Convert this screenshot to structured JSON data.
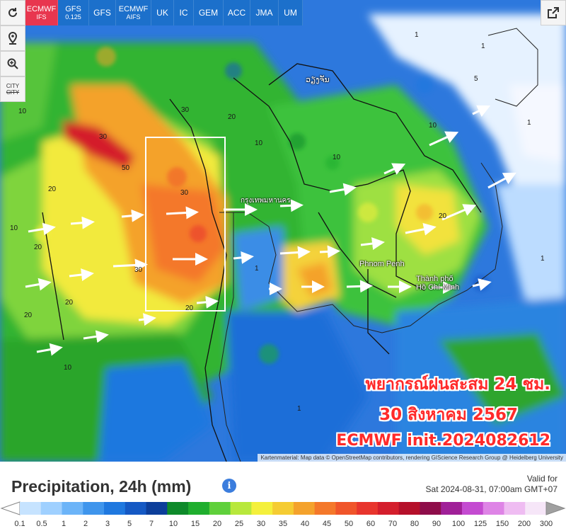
{
  "toolbar": {
    "models": [
      {
        "label": "ECMWF",
        "sub": "IFS",
        "active": true
      },
      {
        "label": "GFS",
        "sub": "0.125",
        "active": false
      },
      {
        "label": "GFS",
        "sub": "",
        "active": false
      },
      {
        "label": "ECMWF",
        "sub": "AIFS",
        "active": false
      },
      {
        "label": "UK",
        "sub": "",
        "active": false
      },
      {
        "label": "IC",
        "sub": "",
        "active": false
      },
      {
        "label": "GEM",
        "sub": "",
        "active": false
      },
      {
        "label": "ACC",
        "sub": "",
        "active": false
      },
      {
        "label": "JMA",
        "sub": "",
        "active": false
      },
      {
        "label": "UM",
        "sub": "",
        "active": false
      }
    ],
    "city_toggle_label": "CITY"
  },
  "map": {
    "cities": {
      "vientiane": "ວຽງຈັນ",
      "bangkok": "กรุงเทพมหานคร",
      "phnom_penh": "Phnom Penh",
      "hcmc": "Thành phố Hồ Chí Minh"
    },
    "overlay": {
      "line1": "พยากรณ์ฝนสะสม 24 ชม.",
      "line2": "30 สิงหาคม 2567",
      "line3": "ECMWF init.2024082612"
    },
    "attribution": "Kartenmaterial: Map data © OpenStreetMap contributors, rendering GIScience Research Group @ Heidelberg University",
    "value_labels": [
      "10",
      "20",
      "30",
      "50",
      "1",
      "5"
    ]
  },
  "legend": {
    "title": "Precipitation, 24h (mm)",
    "valid_label": "Valid for",
    "valid_time": "Sat 2024-08-31, 07:00am GMT+07",
    "ticks": [
      "0.1",
      "0.5",
      "1",
      "2",
      "3",
      "5",
      "7",
      "10",
      "15",
      "20",
      "25",
      "30",
      "35",
      "40",
      "45",
      "50",
      "60",
      "70",
      "80",
      "90",
      "100",
      "125",
      "150",
      "200",
      "300"
    ],
    "colors": [
      "#c6e3ff",
      "#9fd0ff",
      "#6cb4f8",
      "#3f95ec",
      "#1f78df",
      "#1559c4",
      "#0c3e9a",
      "#0e8a2a",
      "#1fae2e",
      "#5fd03b",
      "#b8e83c",
      "#f4f03c",
      "#f5cc33",
      "#f4a22c",
      "#f4782a",
      "#f0552a",
      "#e8352d",
      "#d41e2c",
      "#b5102a",
      "#8e0d4a",
      "#a02098",
      "#c44bd1",
      "#de84e6",
      "#efbcf2",
      "#f6e6f8"
    ]
  },
  "colors": {
    "accent_active": "#e8364f",
    "tab_bg": "#1a6ec8",
    "text_red": "#ff2a2a"
  }
}
